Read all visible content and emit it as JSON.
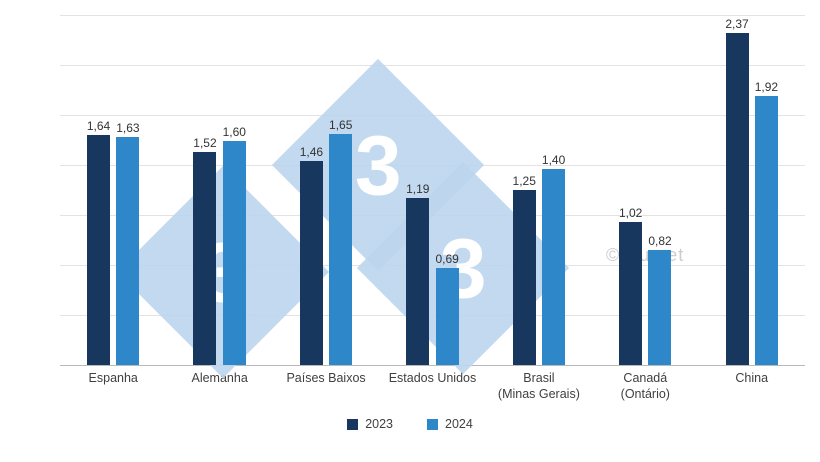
{
  "chart_data": {
    "type": "bar",
    "title": "",
    "categories": [
      "Espanha",
      "Alemanha",
      "Países Baixos",
      "Estados Unidos",
      "Brasil\n(Minas Gerais)",
      "Canadá\n(Ontário)",
      "China"
    ],
    "series": [
      {
        "name": "2023",
        "color": "#17375E",
        "values": [
          1.64,
          1.52,
          1.46,
          1.19,
          1.25,
          1.02,
          2.37
        ]
      },
      {
        "name": "2024",
        "color": "#2D87C8",
        "values": [
          1.63,
          1.6,
          1.65,
          0.69,
          1.4,
          0.82,
          1.92
        ]
      }
    ],
    "ylim": [
      0,
      2.5
    ],
    "grid": true,
    "legend_position": "bottom",
    "decimal_separator": ",",
    "value_labels_shown": true
  },
  "watermark": {
    "text": "© Burset",
    "logo_digit": "3",
    "diamond_color": "#BDD6EE"
  }
}
